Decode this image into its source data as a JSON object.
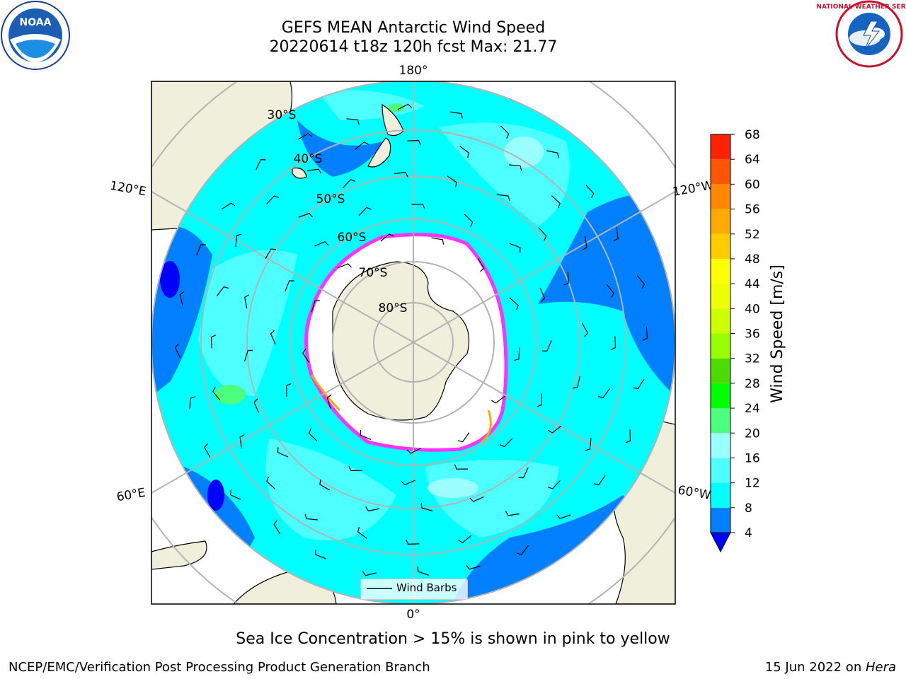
{
  "title": {
    "line1": "GEFS MEAN Antarctic Wind Speed",
    "line2": "20220614 t18z 120h fcst   Max: 21.77"
  },
  "map": {
    "projection": "south-polar-stereographic",
    "lon_labels": {
      "top": "180°",
      "bottom": "0°",
      "left_upper": "120°E",
      "left_lower": "60°E",
      "right_upper": "120°W",
      "right_lower": "60°W"
    },
    "lat_labels": [
      "30°S",
      "40°S",
      "50°S",
      "60°S",
      "70°S",
      "80°S"
    ],
    "colors": {
      "land": "#efefdc",
      "ocean_4_8": "#0080ff",
      "ocean_8_12": "#00ffff",
      "ocean_12_16": "#4dffff",
      "ocean_16_20": "#9bffff",
      "ocean_20_24": "#4cff7c",
      "ice": "#ffffff",
      "ice_edge": "#ff33ff",
      "grid": "#b3b3b3"
    }
  },
  "legend": {
    "label": "Wind Barbs"
  },
  "colorbar": {
    "label": "Wind Speed [m/s]",
    "ticks": [
      "68",
      "64",
      "60",
      "56",
      "52",
      "48",
      "44",
      "40",
      "36",
      "32",
      "28",
      "24",
      "20",
      "16",
      "12",
      "8",
      "4"
    ],
    "colors": [
      "#0000ff",
      "#0080ff",
      "#00ffff",
      "#4dffff",
      "#9bffff",
      "#4cff7c",
      "#00ff00",
      "#4cdd00",
      "#99ff00",
      "#ccff00",
      "#eeff00",
      "#ffff00",
      "#ffcc00",
      "#ffaa00",
      "#ff8800",
      "#ff5500",
      "#ff2200",
      "#ff0000"
    ]
  },
  "caption": "Sea Ice Concentration > 15% is shown in pink to yellow",
  "footer": {
    "left": "NCEP/EMC/Verification Post Processing Product Generation Branch",
    "date": "15 Jun 2022 on ",
    "machine": "Hera"
  },
  "logos": {
    "left": "NOAA",
    "right": "NATIONAL WEATHER SERVICE"
  }
}
